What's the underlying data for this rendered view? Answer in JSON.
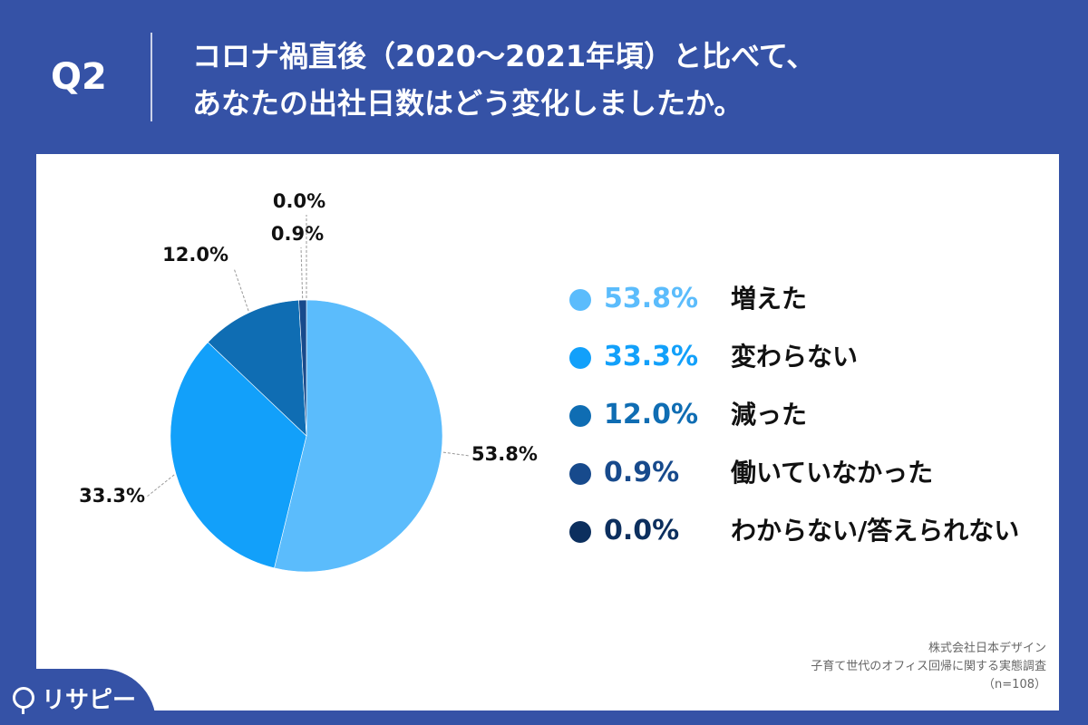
{
  "header": {
    "q_label": "Q2",
    "title_line1": "コロナ禍直後（2020〜2021年頃）と比べて、",
    "title_line2": "あなたの出社日数はどう変化しましたか。"
  },
  "chart_data": {
    "type": "pie",
    "categories": [
      "増えた",
      "変わらない",
      "減った",
      "働いていなかった",
      "わからない/答えられない"
    ],
    "values": [
      53.8,
      33.3,
      12.0,
      0.9,
      0.0
    ],
    "value_labels": [
      "53.8%",
      "33.3%",
      "12.0%",
      "0.9%",
      "0.0%"
    ],
    "colors": [
      "#5bbcfc",
      "#12a0fa",
      "#0f6db3",
      "#174a8c",
      "#0c2f5e"
    ],
    "legend_position": "right"
  },
  "source": {
    "company": "株式会社日本デザイン",
    "survey": "子育て世代のオフィス回帰に関する実態調査",
    "sample": "（n=108）"
  },
  "logo": {
    "text": "リサピー"
  }
}
